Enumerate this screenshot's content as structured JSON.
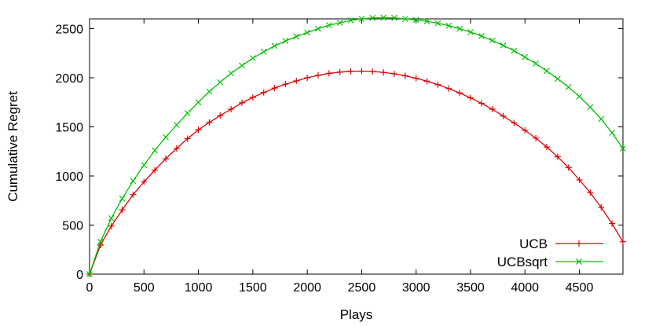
{
  "chart_data": {
    "type": "line",
    "xlabel": "Plays",
    "ylabel": "Cumulative Regret",
    "xlim": [
      0,
      4900
    ],
    "ylim": [
      0,
      2600
    ],
    "xticks": [
      0,
      500,
      1000,
      1500,
      2000,
      2500,
      3000,
      3500,
      4000,
      4500
    ],
    "yticks": [
      0,
      500,
      1000,
      1500,
      2000,
      2500
    ],
    "grid": false,
    "legend_position": "bottom-right",
    "series": [
      {
        "name": "UCB",
        "color": "#e00000",
        "marker": "plus",
        "x": [
          0,
          100,
          200,
          300,
          400,
          500,
          600,
          700,
          800,
          900,
          1000,
          1100,
          1200,
          1300,
          1400,
          1500,
          1600,
          1700,
          1800,
          1900,
          2000,
          2100,
          2200,
          2300,
          2400,
          2500,
          2600,
          2700,
          2800,
          2900,
          3000,
          3100,
          3200,
          3300,
          3400,
          3500,
          3600,
          3700,
          3800,
          3900,
          4000,
          4100,
          4200,
          4300,
          4400,
          4500,
          4600,
          4700,
          4800,
          4900
        ],
        "values": [
          0,
          295,
          490,
          655,
          810,
          940,
          1060,
          1175,
          1280,
          1380,
          1470,
          1545,
          1615,
          1680,
          1745,
          1800,
          1850,
          1895,
          1935,
          1968,
          2000,
          2025,
          2045,
          2058,
          2066,
          2068,
          2064,
          2055,
          2040,
          2020,
          1995,
          1965,
          1930,
          1890,
          1845,
          1795,
          1740,
          1680,
          1610,
          1540,
          1465,
          1385,
          1295,
          1195,
          1085,
          960,
          830,
          680,
          515,
          330
        ]
      },
      {
        "name": "UCBsqrt",
        "color": "#00c000",
        "marker": "cross",
        "x": [
          0,
          100,
          200,
          300,
          400,
          500,
          600,
          700,
          800,
          900,
          1000,
          1100,
          1200,
          1300,
          1400,
          1500,
          1600,
          1700,
          1800,
          1900,
          2000,
          2100,
          2200,
          2300,
          2400,
          2500,
          2600,
          2700,
          2800,
          2900,
          3000,
          3100,
          3200,
          3300,
          3400,
          3500,
          3600,
          3700,
          3800,
          3900,
          4000,
          4100,
          4200,
          4300,
          4400,
          4500,
          4600,
          4700,
          4800,
          4900
        ],
        "values": [
          0,
          330,
          570,
          770,
          950,
          1110,
          1260,
          1395,
          1520,
          1640,
          1750,
          1860,
          1955,
          2045,
          2125,
          2200,
          2265,
          2325,
          2375,
          2420,
          2460,
          2500,
          2535,
          2560,
          2585,
          2600,
          2610,
          2613,
          2610,
          2600,
          2590,
          2575,
          2555,
          2530,
          2500,
          2465,
          2425,
          2380,
          2330,
          2275,
          2210,
          2145,
          2070,
          1990,
          1905,
          1810,
          1700,
          1580,
          1440,
          1280
        ]
      }
    ]
  }
}
